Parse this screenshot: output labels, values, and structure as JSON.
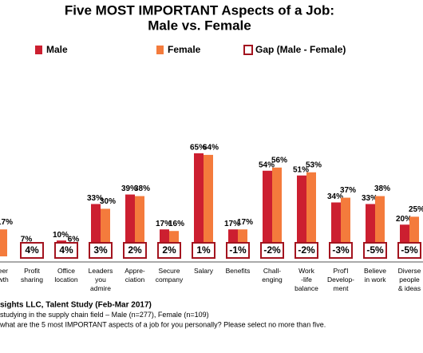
{
  "chart_data": {
    "type": "bar",
    "title": "Five MOST IMPORTANT Aspects of a Job:",
    "subtitle": "Male vs. Female",
    "categories": [
      "Career\nGrowth",
      "Profit\nsharing",
      "Office\nlocation",
      "Leaders\nyou\nadmire",
      "Appre-\nciation",
      "Secure\ncompany",
      "Salary",
      "Benefits",
      "Chall-\nenging",
      "Work\n-life\nbalance",
      "Prof'l\nDevelop-\nment",
      "Believe\nin work",
      "Diverse\npeople\n& ideas"
    ],
    "ylim": [
      0,
      70
    ],
    "series": [
      {
        "name": "Male",
        "color": "#cc1f30",
        "values": [
          null,
          7,
          10,
          33,
          39,
          17,
          65,
          17,
          54,
          51,
          34,
          33,
          20
        ],
        "value_labels": [
          null,
          "7%",
          "10%",
          "33%",
          "39%",
          "17%",
          "65%",
          "17%",
          "54%",
          "51%",
          "34%",
          "33%",
          "20%"
        ]
      },
      {
        "name": "Female",
        "color": "#f47b3c",
        "values": [
          17,
          3,
          6,
          30,
          38,
          16,
          64,
          17,
          56,
          53,
          37,
          38,
          25
        ],
        "value_labels": [
          "17%",
          null,
          "6%",
          "30%",
          "38%",
          "16%",
          "64%",
          "17%",
          "56%",
          "53%",
          "37%",
          "38%",
          "25%"
        ]
      },
      {
        "name": "Gap (Male - Female)",
        "color": "#a3141f",
        "values": [
          null,
          4,
          4,
          3,
          2,
          2,
          1,
          -1,
          -2,
          -2,
          -3,
          -5,
          -5
        ],
        "value_labels": [
          null,
          "4%",
          "4%",
          "3%",
          "2%",
          "2%",
          "1%",
          "-1%",
          "-2%",
          "-2%",
          "-3%",
          "-5%",
          "-5%"
        ]
      }
    ],
    "footnotes": [
      "sights LLC, Talent Study (Feb-Mar 2017)",
      "studying in the supply chain field – Male (n=277), Female (n=109)",
      "what are the 5 most IMPORTANT aspects of a job for you personally? Please select no more than five."
    ]
  }
}
